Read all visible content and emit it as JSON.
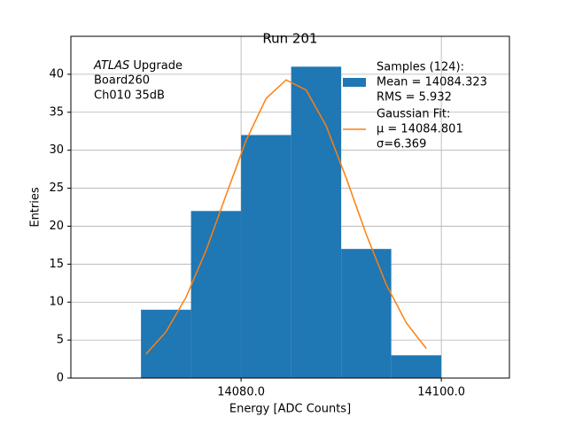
{
  "chart_data": {
    "type": "histogram",
    "title": "Run 201",
    "x_label": "Energy [ADC Counts]",
    "y_label": "Entries",
    "bins": [
      14070,
      14075,
      14080,
      14085,
      14090,
      14095,
      14100
    ],
    "series": [
      {
        "type": "histogram",
        "name": [
          "Samples (124):",
          " Mean = 14084.323",
          " RMS = 5.932"
        ],
        "color": "#1f77b4",
        "values": [
          9,
          22,
          32,
          41,
          17,
          3
        ]
      },
      {
        "type": "line",
        "name": [
          "Gaussian Fit:",
          " μ = 14084.801",
          " σ=6.369"
        ],
        "color": "#ff7f0e",
        "x": [
          14070.5,
          14072.5,
          14074.5,
          14076.5,
          14078.5,
          14080.5,
          14082.5,
          14084.5,
          14086.5,
          14088.5,
          14090.5,
          14092.5,
          14094.5,
          14096.5,
          14098.5
        ],
        "values": [
          3.16,
          6.09,
          10.63,
          16.81,
          24.09,
          31.29,
          36.82,
          39.26,
          37.92,
          33.2,
          26.34,
          18.93,
          12.32,
          7.27,
          3.89
        ]
      }
    ],
    "annotation": {
      "emphasis": "ATLAS",
      "lines": [
        " Upgrade",
        " Board260",
        " Ch010 35dB"
      ]
    },
    "xlim": [
      14063,
      14106.8
    ],
    "ylim": [
      0,
      45
    ],
    "xticks": [
      {
        "value": 14080,
        "label": "14080.0"
      },
      {
        "value": 14100,
        "label": "14100.0"
      }
    ],
    "yticks": [
      0,
      5,
      10,
      15,
      20,
      25,
      30,
      35,
      40
    ],
    "grid": true,
    "legend": "upper right"
  }
}
